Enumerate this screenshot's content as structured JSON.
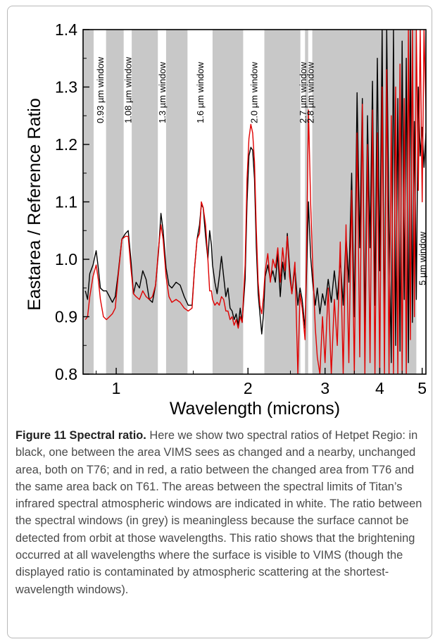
{
  "chart_data": {
    "type": "line",
    "ylabel": "Eastarea / Reference Ratio",
    "xlabel": "Wavelength (microns)",
    "xscale": "log",
    "xlim": [
      0.84,
      5.1
    ],
    "ylim": [
      0.8,
      1.4
    ],
    "yticks": [
      0.8,
      0.9,
      1.0,
      1.1,
      1.2,
      1.3,
      1.4
    ],
    "ytick_labels": [
      "0.8",
      "0.9",
      "1.0",
      "1.1",
      "1.2",
      "1.3",
      "1.4"
    ],
    "xticks": [
      1,
      2,
      3,
      4,
      5
    ],
    "xtick_labels": [
      "1",
      "2",
      "3",
      "4",
      "5"
    ],
    "background_color": "#c8c8c8",
    "window_color": "#ffffff",
    "windows": [
      {
        "label": "0.93  µm window",
        "x0": 0.888,
        "x1": 0.948
      },
      {
        "label": "1.08  µm window",
        "x0": 1.04,
        "x1": 1.085
      },
      {
        "label": "1.3  µm window",
        "x0": 1.245,
        "x1": 1.3
      },
      {
        "label": "1.6  µm window",
        "x0": 1.455,
        "x1": 1.66
      },
      {
        "label": "2.0  µm window",
        "x0": 1.95,
        "x1": 2.18
      },
      {
        "label": "2.7  µm window",
        "x0": 2.635,
        "x1": 2.7
      },
      {
        "label": "2.8  µm window",
        "x0": 2.745,
        "x1": 2.805
      },
      {
        "label": "5  µm window",
        "x0": 4.85,
        "x1": 5.1
      }
    ],
    "series": [
      {
        "color": "#000000",
        "points": [
          [
            0.85,
            0.945
          ],
          [
            0.86,
            0.93
          ],
          [
            0.87,
            0.975
          ],
          [
            0.885,
            0.99
          ],
          [
            0.9,
            1.015
          ],
          [
            0.91,
            0.985
          ],
          [
            0.92,
            0.95
          ],
          [
            0.935,
            0.945
          ],
          [
            0.95,
            0.945
          ],
          [
            0.965,
            0.935
          ],
          [
            0.98,
            0.925
          ],
          [
            0.995,
            0.935
          ],
          [
            1.01,
            0.975
          ],
          [
            1.03,
            1.035
          ],
          [
            1.05,
            1.045
          ],
          [
            1.065,
            1.05
          ],
          [
            1.08,
            1.0
          ],
          [
            1.095,
            0.94
          ],
          [
            1.11,
            0.96
          ],
          [
            1.13,
            0.95
          ],
          [
            1.15,
            0.98
          ],
          [
            1.17,
            0.965
          ],
          [
            1.19,
            0.93
          ],
          [
            1.21,
            0.925
          ],
          [
            1.23,
            0.955
          ],
          [
            1.25,
            1.015
          ],
          [
            1.265,
            1.08
          ],
          [
            1.28,
            1.05
          ],
          [
            1.3,
            0.985
          ],
          [
            1.32,
            0.955
          ],
          [
            1.34,
            0.95
          ],
          [
            1.37,
            0.96
          ],
          [
            1.4,
            0.955
          ],
          [
            1.43,
            0.935
          ],
          [
            1.46,
            0.92
          ],
          [
            1.49,
            0.92
          ],
          [
            1.51,
            0.985
          ],
          [
            1.53,
            1.035
          ],
          [
            1.55,
            1.06
          ],
          [
            1.565,
            1.095
          ],
          [
            1.58,
            1.09
          ],
          [
            1.6,
            1.04
          ],
          [
            1.62,
            1.0
          ],
          [
            1.635,
            1.05
          ],
          [
            1.65,
            1.025
          ],
          [
            1.66,
            0.99
          ],
          [
            1.68,
            0.96
          ],
          [
            1.7,
            0.94
          ],
          [
            1.72,
            0.97
          ],
          [
            1.74,
            1.005
          ],
          [
            1.76,
            0.97
          ],
          [
            1.78,
            0.935
          ],
          [
            1.8,
            0.95
          ],
          [
            1.82,
            0.915
          ],
          [
            1.84,
            0.91
          ],
          [
            1.86,
            0.895
          ],
          [
            1.88,
            0.905
          ],
          [
            1.9,
            0.885
          ],
          [
            1.92,
            0.915
          ],
          [
            1.94,
            0.89
          ],
          [
            1.97,
            0.965
          ],
          [
            1.99,
            1.1
          ],
          [
            2.01,
            1.18
          ],
          [
            2.03,
            1.195
          ],
          [
            2.05,
            1.19
          ],
          [
            2.07,
            1.14
          ],
          [
            2.09,
            1.02
          ],
          [
            2.11,
            0.94
          ],
          [
            2.13,
            0.905
          ],
          [
            2.15,
            0.87
          ],
          [
            2.17,
            0.905
          ],
          [
            2.19,
            0.97
          ],
          [
            2.22,
            0.99
          ],
          [
            2.25,
            0.965
          ],
          [
            2.28,
            0.98
          ],
          [
            2.31,
            0.96
          ],
          [
            2.34,
            1.01
          ],
          [
            2.37,
            0.935
          ],
          [
            2.4,
            0.995
          ],
          [
            2.43,
            0.965
          ],
          [
            2.46,
            1.045
          ],
          [
            2.49,
            0.985
          ],
          [
            2.52,
            0.94
          ],
          [
            2.56,
            0.985
          ],
          [
            2.6,
            0.92
          ],
          [
            2.63,
            0.95
          ],
          [
            2.66,
            0.93
          ],
          [
            2.7,
            0.88
          ],
          [
            2.72,
            0.97
          ],
          [
            2.75,
            1.1
          ],
          [
            2.78,
            1.005
          ],
          [
            2.81,
            0.96
          ],
          [
            2.85,
            0.92
          ],
          [
            2.88,
            0.95
          ],
          [
            2.92,
            0.905
          ],
          [
            2.96,
            0.94
          ],
          [
            3.0,
            0.92
          ],
          [
            3.05,
            0.965
          ],
          [
            3.1,
            0.925
          ],
          [
            3.15,
            0.98
          ],
          [
            3.2,
            0.93
          ],
          [
            3.25,
            1.0
          ],
          [
            3.3,
            0.92
          ],
          [
            3.35,
            1.04
          ],
          [
            3.4,
            0.96
          ],
          [
            3.45,
            1.15
          ],
          [
            3.5,
            0.9
          ],
          [
            3.55,
            1.29
          ],
          [
            3.6,
            1.02
          ],
          [
            3.65,
            1.28
          ],
          [
            3.7,
            0.88
          ],
          [
            3.75,
            1.25
          ],
          [
            3.8,
            1.02
          ],
          [
            3.85,
            1.31
          ],
          [
            3.9,
            0.92
          ],
          [
            3.95,
            1.35
          ],
          [
            4.0,
            0.98
          ],
          [
            4.05,
            1.4
          ],
          [
            4.1,
            0.85
          ],
          [
            4.15,
            1.4
          ],
          [
            4.2,
            1.05
          ],
          [
            4.25,
            0.82
          ],
          [
            4.3,
            1.4
          ],
          [
            4.35,
            0.85
          ],
          [
            4.4,
            1.28
          ],
          [
            4.45,
            0.84
          ],
          [
            4.5,
            1.38
          ],
          [
            4.55,
            0.93
          ],
          [
            4.6,
            1.35
          ],
          [
            4.65,
            0.82
          ],
          [
            4.7,
            1.4
          ],
          [
            4.75,
            0.89
          ],
          [
            4.8,
            1.24
          ],
          [
            4.85,
            0.93
          ],
          [
            4.9,
            1.3
          ],
          [
            4.95,
            1.18
          ],
          [
            5.0,
            1.23
          ],
          [
            5.05,
            1.16
          ],
          [
            5.1,
            1.22
          ]
        ]
      },
      {
        "color": "#e00000",
        "points": [
          [
            0.85,
            0.895
          ],
          [
            0.86,
            0.9
          ],
          [
            0.87,
            0.935
          ],
          [
            0.885,
            0.97
          ],
          [
            0.9,
            0.99
          ],
          [
            0.91,
            0.965
          ],
          [
            0.92,
            0.93
          ],
          [
            0.935,
            0.9
          ],
          [
            0.95,
            0.895
          ],
          [
            0.965,
            0.9
          ],
          [
            0.98,
            0.905
          ],
          [
            0.995,
            0.915
          ],
          [
            1.01,
            0.97
          ],
          [
            1.03,
            1.035
          ],
          [
            1.05,
            1.04
          ],
          [
            1.065,
            1.04
          ],
          [
            1.08,
            0.985
          ],
          [
            1.095,
            0.94
          ],
          [
            1.11,
            0.935
          ],
          [
            1.13,
            0.93
          ],
          [
            1.15,
            0.945
          ],
          [
            1.17,
            0.935
          ],
          [
            1.19,
            0.93
          ],
          [
            1.21,
            0.935
          ],
          [
            1.23,
            0.955
          ],
          [
            1.25,
            1.02
          ],
          [
            1.265,
            1.06
          ],
          [
            1.28,
            1.035
          ],
          [
            1.3,
            0.97
          ],
          [
            1.32,
            0.935
          ],
          [
            1.34,
            0.925
          ],
          [
            1.37,
            0.93
          ],
          [
            1.4,
            0.925
          ],
          [
            1.43,
            0.915
          ],
          [
            1.46,
            0.91
          ],
          [
            1.49,
            0.915
          ],
          [
            1.51,
            0.985
          ],
          [
            1.53,
            1.035
          ],
          [
            1.55,
            1.045
          ],
          [
            1.565,
            1.1
          ],
          [
            1.58,
            1.09
          ],
          [
            1.6,
            1.06
          ],
          [
            1.62,
            1.0
          ],
          [
            1.635,
            0.945
          ],
          [
            1.65,
            0.945
          ],
          [
            1.66,
            0.93
          ],
          [
            1.68,
            0.92
          ],
          [
            1.7,
            0.925
          ],
          [
            1.72,
            0.92
          ],
          [
            1.74,
            0.935
          ],
          [
            1.76,
            0.93
          ],
          [
            1.78,
            0.91
          ],
          [
            1.8,
            0.91
          ],
          [
            1.82,
            0.895
          ],
          [
            1.84,
            0.9
          ],
          [
            1.86,
            0.885
          ],
          [
            1.88,
            0.895
          ],
          [
            1.9,
            0.88
          ],
          [
            1.92,
            0.9
          ],
          [
            1.94,
            0.89
          ],
          [
            1.97,
            0.99
          ],
          [
            1.99,
            1.14
          ],
          [
            2.01,
            1.21
          ],
          [
            2.03,
            1.235
          ],
          [
            2.05,
            1.22
          ],
          [
            2.07,
            1.17
          ],
          [
            2.09,
            1.05
          ],
          [
            2.11,
            0.96
          ],
          [
            2.13,
            0.92
          ],
          [
            2.15,
            0.905
          ],
          [
            2.17,
            0.935
          ],
          [
            2.19,
            0.98
          ],
          [
            2.22,
            1.01
          ],
          [
            2.25,
            0.96
          ],
          [
            2.28,
            1.0
          ],
          [
            2.31,
            0.985
          ],
          [
            2.34,
            1.02
          ],
          [
            2.37,
            0.96
          ],
          [
            2.4,
            1.02
          ],
          [
            2.43,
            0.98
          ],
          [
            2.46,
            1.04
          ],
          [
            2.49,
            0.97
          ],
          [
            2.52,
            0.94
          ],
          [
            2.56,
            0.995
          ],
          [
            2.6,
            0.8
          ],
          [
            2.63,
            0.94
          ],
          [
            2.66,
            0.915
          ],
          [
            2.7,
            0.86
          ],
          [
            2.72,
            1.0
          ],
          [
            2.75,
            1.26
          ],
          [
            2.78,
            1.1
          ],
          [
            2.81,
            0.99
          ],
          [
            2.85,
            0.88
          ],
          [
            2.88,
            0.83
          ],
          [
            2.92,
            0.8
          ],
          [
            2.96,
            0.9
          ],
          [
            3.0,
            0.82
          ],
          [
            3.05,
            0.95
          ],
          [
            3.1,
            0.8
          ],
          [
            3.15,
            0.93
          ],
          [
            3.2,
            0.85
          ],
          [
            3.25,
            1.03
          ],
          [
            3.3,
            0.8
          ],
          [
            3.35,
            1.06
          ],
          [
            3.4,
            0.82
          ],
          [
            3.45,
            1.12
          ],
          [
            3.5,
            0.8
          ],
          [
            3.55,
            1.22
          ],
          [
            3.6,
            0.83
          ],
          [
            3.65,
            1.27
          ],
          [
            3.7,
            0.8
          ],
          [
            3.75,
            1.2
          ],
          [
            3.8,
            0.82
          ],
          [
            3.85,
            1.26
          ],
          [
            3.9,
            0.8
          ],
          [
            3.95,
            1.22
          ],
          [
            4.0,
            0.8
          ],
          [
            4.05,
            1.3
          ],
          [
            4.1,
            0.8
          ],
          [
            4.15,
            1.33
          ],
          [
            4.2,
            0.8
          ],
          [
            4.25,
            1.25
          ],
          [
            4.3,
            0.8
          ],
          [
            4.35,
            1.3
          ],
          [
            4.4,
            0.8
          ],
          [
            4.45,
            1.34
          ],
          [
            4.5,
            0.8
          ],
          [
            4.55,
            1.28
          ],
          [
            4.6,
            0.8
          ],
          [
            4.65,
            1.4
          ],
          [
            4.7,
            0.86
          ],
          [
            4.75,
            1.4
          ],
          [
            4.8,
            0.9
          ],
          [
            4.85,
            1.4
          ],
          [
            4.9,
            1.12
          ],
          [
            4.95,
            1.4
          ],
          [
            5.0,
            1.1
          ],
          [
            5.05,
            1.4
          ],
          [
            5.1,
            1.26
          ]
        ]
      }
    ]
  },
  "caption": {
    "label": "Figure 11",
    "title": "Spectral ratio.",
    "text": "Here we show two spectral ratios of Hetpet Regio: in black, one between the area VIMS sees as changed and a nearby, unchanged area, both on T76; and in red, a ratio between the changed area from T76 and the same area back on T61. The areas between the spectral limits of Titan’s infrared spectral atmospheric windows are indicated in white. The ratio between the spectral windows (in grey) is meaningless because the surface cannot be detected from orbit at those wavelengths. This ratio shows that the brightening occurred at all wavelengths where the surface is visible to VIMS (though the displayed ratio is contaminated by atmospheric scattering at the shortest-wavelength windows)."
  }
}
